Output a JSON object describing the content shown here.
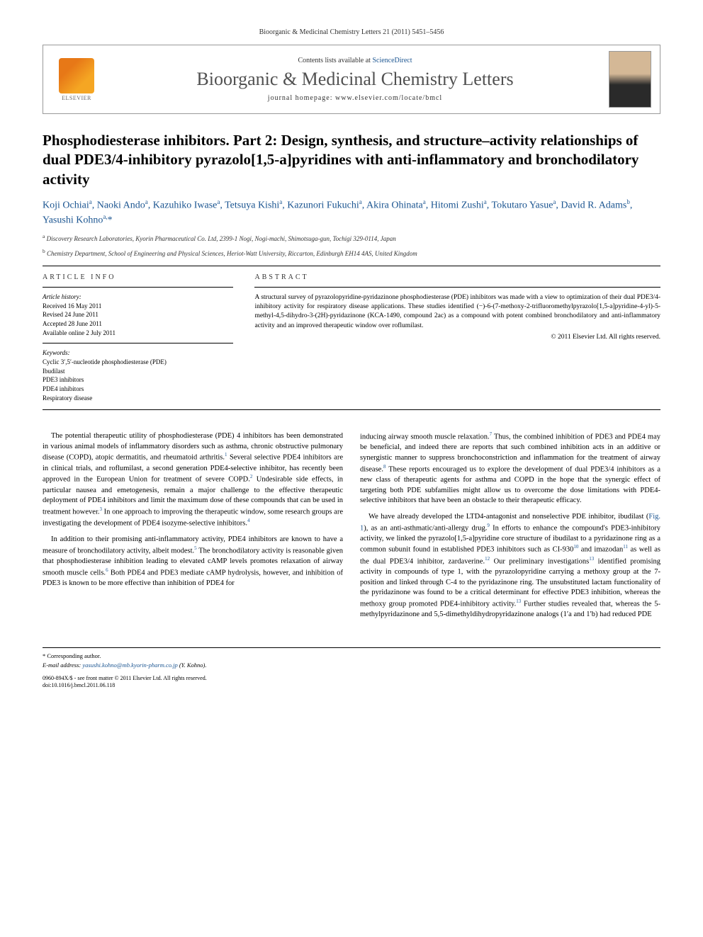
{
  "citation": "Bioorganic & Medicinal Chemistry Letters 21 (2011) 5451–5456",
  "header": {
    "contents_prefix": "Contents lists available at ",
    "contents_link": "ScienceDirect",
    "journal": "Bioorganic & Medicinal Chemistry Letters",
    "homepage_prefix": "journal homepage: ",
    "homepage_url": "www.elsevier.com/locate/bmcl",
    "publisher": "ELSEVIER"
  },
  "article": {
    "title": "Phosphodiesterase inhibitors. Part 2: Design, synthesis, and structure–activity relationships of dual PDE3/4-inhibitory pyrazolo[1,5-a]pyridines with anti-inflammatory and bronchodilatory activity",
    "authors_html": "Koji Ochiai<sup>a</sup>, Naoki Ando<sup>a</sup>, Kazuhiko Iwase<sup>a</sup>, Tetsuya Kishi<sup>a</sup>, Kazunori Fukuchi<sup>a</sup>, Akira Ohinata<sup>a</sup>, Hitomi Zushi<sup>a</sup>, Tokutaro Yasue<sup>a</sup>, David R. Adams<sup>b</sup>, Yasushi Kohno<sup>a,</sup><span class='star'>*</span>",
    "affiliations": [
      {
        "sup": "a",
        "text": "Discovery Research Laboratories, Kyorin Pharmaceutical Co. Ltd, 2399-1 Nogi, Nogi-machi, Shimotsuga-gun, Tochigi 329-0114, Japan"
      },
      {
        "sup": "b",
        "text": "Chemistry Department, School of Engineering and Physical Sciences, Heriot-Watt University, Riccarton, Edinburgh EH14 4AS, United Kingdom"
      }
    ]
  },
  "info": {
    "article_info_label": "ARTICLE INFO",
    "abstract_label": "ABSTRACT",
    "history_label": "Article history:",
    "history": [
      "Received 16 May 2011",
      "Revised 24 June 2011",
      "Accepted 28 June 2011",
      "Available online 2 July 2011"
    ],
    "keywords_label": "Keywords:",
    "keywords": [
      "Cyclic 3′,5′-nucleotide phosphodiesterase (PDE)",
      "Ibudilast",
      "PDE3 inhibitors",
      "PDE4 inhibitors",
      "Respiratory disease"
    ],
    "abstract": "A structural survey of pyrazolopyridine-pyridazinone phosphodiesterase (PDE) inhibitors was made with a view to optimization of their dual PDE3/4-inhibitory activity for respiratory disease applications. These studies identified (−)-6-(7-methoxy-2-trifluoromethylpyrazolo[1,5-a]pyridine-4-yl)-5-methyl-4,5-dihydro-3-(2H)-pyridazinone (KCA-1490, compound 2ac) as a compound with potent combined bronchodilatory and anti-inflammatory activity and an improved therapeutic window over roflumilast.",
    "copyright": "© 2011 Elsevier Ltd. All rights reserved."
  },
  "body": {
    "col1_p1": "The potential therapeutic utility of phosphodiesterase (PDE) 4 inhibitors has been demonstrated in various animal models of inflammatory disorders such as asthma, chronic obstructive pulmonary disease (COPD), atopic dermatitis, and rheumatoid arthritis.<sup class='ref'>1</sup> Several selective PDE4 inhibitors are in clinical trials, and roflumilast, a second generation PDE4-selective inhibitor, has recently been approved in the European Union for treatment of severe COPD.<sup class='ref'>2</sup> Undesirable side effects, in particular nausea and emetogenesis, remain a major challenge to the effective therapeutic deployment of PDE4 inhibitors and limit the maximum dose of these compounds that can be used in treatment however.<sup class='ref'>3</sup> In one approach to improving the therapeutic window, some research groups are investigating the development of PDE4 isozyme-selective inhibitors.<sup class='ref'>4</sup>",
    "col1_p2": "In addition to their promising anti-inflammatory activity, PDE4 inhibitors are known to have a measure of bronchodilatory activity, albeit modest.<sup class='ref'>5</sup> The bronchodilatory activity is reasonable given that phosphodiesterase inhibition leading to elevated cAMP levels promotes relaxation of airway smooth muscle cells.<sup class='ref'>6</sup> Both PDE4 and PDE3 mediate cAMP hydrolysis, however, and inhibition of PDE3 is known to be more effective than inhibition of PDE4 for",
    "col2_p1": "inducing airway smooth muscle relaxation.<sup class='ref'>7</sup> Thus, the combined inhibition of PDE3 and PDE4 may be beneficial, and indeed there are reports that such combined inhibition acts in an additive or synergistic manner to suppress bronchoconstriction and inflammation for the treatment of airway disease.<sup class='ref'>8</sup> These reports encouraged us to explore the development of dual PDE3/4 inhibitors as a new class of therapeutic agents for asthma and COPD in the hope that the synergic effect of targeting both PDE subfamilies might allow us to overcome the dose limitations with PDE4-selective inhibitors that have been an obstacle to their therapeutic efficacy.",
    "col2_p2": "We have already developed the LTD4-antagonist and nonselective PDE inhibitor, ibudilast (<span class='fig-ref'>Fig. 1</span>), as an anti-asthmatic/anti-allergy drug.<sup class='ref'>9</sup> In efforts to enhance the compound's PDE3-inhibitory activity, we linked the pyrazolo[1,5-a]pyridine core structure of ibudilast to a pyridazinone ring as a common subunit found in established PDE3 inhibitors such as CI-930<sup class='ref'>10</sup> and imazodan<sup class='ref'>11</sup> as well as the dual PDE3/4 inhibitor, zardaverine.<sup class='ref'>12</sup> Our preliminary investigations<sup class='ref'>13</sup> identified promising activity in compounds of type 1, with the pyrazolopyridine carrying a methoxy group at the 7-position and linked through C-4 to the pyridazinone ring. The unsubstituted lactam functionality of the pyridazinone was found to be a critical determinant for effective PDE3 inhibition, whereas the methoxy group promoted PDE4-inhibitory activity.<sup class='ref'>13</sup> Further studies revealed that, whereas the 5-methylpyridazinone and 5,5-dimethyldihydropyridazinone analogs (1′a and 1′b) had reduced PDE"
  },
  "footer": {
    "corresp": "* Corresponding author.",
    "email_label": "E-mail address:",
    "email": "yasushi.kohno@mb.kyorin-pharm.co.jp",
    "email_name": "(Y. Kohno).",
    "issn": "0960-894X/$ - see front matter © 2011 Elsevier Ltd. All rights reserved.",
    "doi": "doi:10.1016/j.bmcl.2011.06.118"
  },
  "colors": {
    "link": "#1a5490",
    "text": "#000000",
    "gray": "#515151",
    "border": "#999999"
  }
}
